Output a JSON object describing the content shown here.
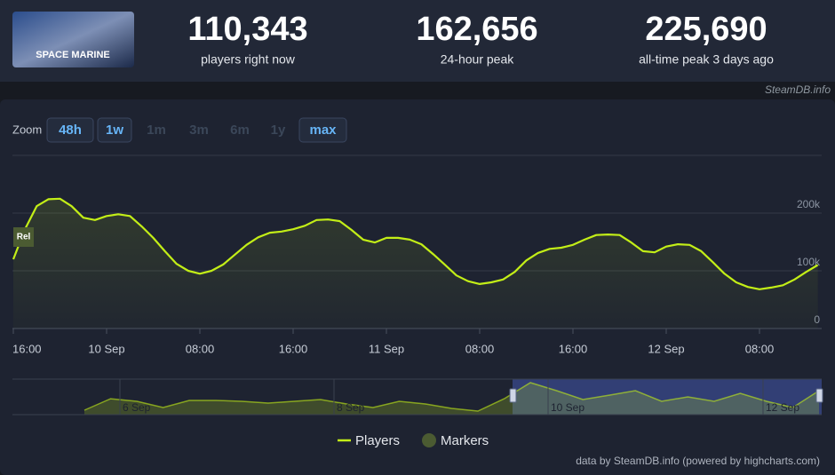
{
  "header": {
    "image_text": "SPACE MARINE",
    "stats": [
      {
        "value": "110,343",
        "label": "players right now"
      },
      {
        "value": "162,656",
        "label": "24-hour peak"
      },
      {
        "value": "225,690",
        "label": "all-time peak 3 days ago"
      }
    ],
    "source": "SteamDB.info"
  },
  "zoom": {
    "label": "Zoom",
    "buttons": [
      {
        "text": "48h",
        "enabled": true
      },
      {
        "text": "1w",
        "enabled": true
      },
      {
        "text": "1m",
        "enabled": false
      },
      {
        "text": "3m",
        "enabled": false
      },
      {
        "text": "6m",
        "enabled": false
      },
      {
        "text": "1y",
        "enabled": false
      },
      {
        "text": "max",
        "enabled": true
      }
    ]
  },
  "chart_data": {
    "type": "line",
    "categories": [
      "16:00",
      null,
      null,
      null,
      null,
      null,
      null,
      null,
      "10 Sep",
      null,
      null,
      null,
      null,
      null,
      null,
      null,
      "08:00",
      null,
      null,
      null,
      null,
      null,
      null,
      null,
      "16:00",
      null,
      null,
      null,
      null,
      null,
      null,
      null,
      "11 Sep",
      null,
      null,
      null,
      null,
      null,
      null,
      null,
      "08:00",
      null,
      null,
      null,
      null,
      null,
      null,
      null,
      "16:00",
      null,
      null,
      null,
      null,
      null,
      null,
      null,
      "12 Sep",
      null,
      null,
      null,
      null,
      null,
      null,
      null,
      "08:00",
      null,
      null,
      null,
      null,
      null
    ],
    "series": [
      {
        "name": "Players",
        "color": "#c3ee17",
        "values": [
          120000,
          172000,
          212000,
          224000,
          225000,
          212000,
          192000,
          188000,
          195000,
          198000,
          195000,
          177000,
          157000,
          134000,
          112000,
          100000,
          95000,
          100000,
          111000,
          128000,
          145000,
          158000,
          166000,
          168000,
          172000,
          178000,
          188000,
          189000,
          186000,
          171000,
          154000,
          149000,
          157000,
          157000,
          154000,
          146000,
          129000,
          111000,
          92000,
          82000,
          77000,
          80000,
          85000,
          98000,
          118000,
          131000,
          138000,
          140000,
          145000,
          154000,
          162000,
          163000,
          162000,
          149000,
          134000,
          132000,
          142000,
          146000,
          145000,
          134000,
          115000,
          95000,
          80000,
          72000,
          68000,
          71000,
          75000,
          85000,
          98000,
          110000
        ]
      }
    ],
    "markers": {
      "name": "Markers",
      "color": "#4b5b32",
      "labels": [
        "Rel"
      ]
    },
    "ylim": [
      0,
      300000
    ],
    "yticks": [
      0,
      {
        "value": 100000,
        "label": "100k"
      },
      {
        "value": 200000,
        "label": "200k"
      }
    ],
    "grid": true,
    "navigator": {
      "labels": [
        "6 Sep",
        "8 Sep",
        "10 Sep",
        "12 Sep"
      ],
      "values": [
        31000,
        112000,
        94000,
        50000,
        100000,
        100000,
        94000,
        81000,
        94000,
        106000,
        75000,
        50000,
        94000,
        75000,
        44000,
        25000,
        112000,
        225000,
        169000,
        106000,
        137000,
        169000,
        94000,
        125000,
        94000,
        150000,
        94000,
        50000,
        169000
      ]
    }
  },
  "footer": "data by SteamDB.info (powered by highcharts.com)"
}
